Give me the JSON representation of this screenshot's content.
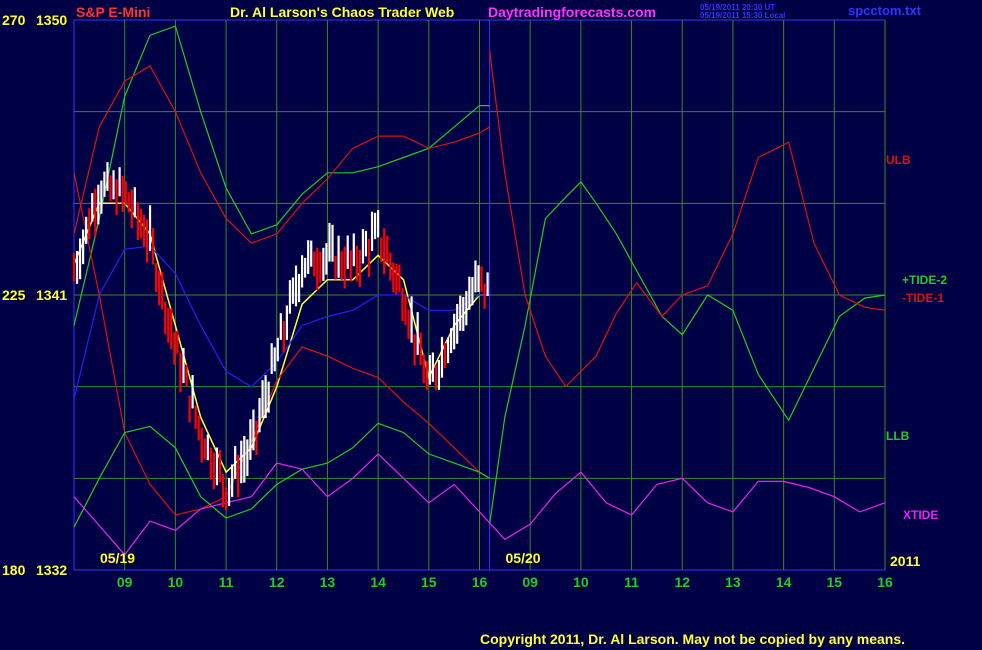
{
  "header": {
    "symbol": "S&P E-Mini",
    "title": "Dr. Al Larson's Chaos Trader Web",
    "site": "Daytradingforecasts.com",
    "timestamp_ut": "05/19/2011 20:30 UT",
    "timestamp_local": "05/19/2011 15:30 Local",
    "file": "spcctom.txt"
  },
  "footer": {
    "copyright": "Copyright 2011, Dr. Al Larson. May not be copied by any means."
  },
  "colors": {
    "background": "#000044",
    "grid": "#2e8b2e",
    "divider": "#3333ff",
    "green_line": "#22cc22",
    "red_line": "#dd1111",
    "blue_line": "#2222ee",
    "magenta_line": "#ee22ee",
    "yellow_line": "#ffff33",
    "white_bar": "#ffffff",
    "red_bar": "#ff0000"
  },
  "chart_data": {
    "type": "line",
    "y_axis_left": [
      {
        "outer": "270",
        "inner": "1350",
        "value": 1350
      },
      {
        "outer": "225",
        "inner": "1341",
        "value": 1341
      },
      {
        "outer": "180",
        "inner": "1332",
        "value": 1332
      }
    ],
    "ylim": [
      1332,
      1350
    ],
    "x_ticks": [
      "09",
      "10",
      "11",
      "12",
      "13",
      "14",
      "15",
      "16",
      "09",
      "10",
      "11",
      "12",
      "13",
      "14",
      "15",
      "16"
    ],
    "date_labels": [
      {
        "text": "05/19",
        "index": 0
      },
      {
        "text": "05/20",
        "index": 8
      }
    ],
    "year_label": "2011",
    "series_labels": [
      {
        "text": "ULB",
        "color": "#dd1111"
      },
      {
        "text": "+TIDE-2",
        "color": "#22cc22"
      },
      {
        "text": "-TIDE-1",
        "color": "#dd1111"
      },
      {
        "text": "LLB",
        "color": "#22cc22"
      },
      {
        "text": "XTIDE",
        "color": "#ee22ee"
      }
    ],
    "hours_x": [
      8.0,
      8.5,
      9.0,
      9.5,
      10.0,
      10.5,
      11.0,
      11.5,
      12.0,
      12.5,
      13.0,
      13.5,
      14.0,
      14.5,
      15.0,
      15.5,
      16.0,
      16.2
    ],
    "price_series": [
      {
        "name": "price-bars",
        "values": [
          1341.8,
          1344.5,
          1344.3,
          1342.8,
          1339.3,
          1336.5,
          1334.7,
          1336.0,
          1339.0,
          1342.0,
          1342.3,
          1342.0,
          1343.0,
          1341.0,
          1338.0,
          1340.0,
          1341.5,
          1341.0
        ]
      },
      {
        "name": "price-average",
        "values": [
          1342.0,
          1344.0,
          1344.0,
          1343.0,
          1340.0,
          1337.0,
          1335.2,
          1336.0,
          1338.0,
          1340.7,
          1341.5,
          1341.5,
          1342.3,
          1341.5,
          1338.3,
          1340.0,
          1341.0,
          1341.0
        ]
      },
      {
        "name": "blue-line",
        "values": [
          1337.6,
          1341.0,
          1342.5,
          1342.6,
          1341.7,
          1340.0,
          1338.5,
          1338.0,
          1338.8,
          1340.0,
          1340.3,
          1340.5,
          1341.0,
          1341.0,
          1340.5,
          1340.5,
          1341.0,
          1341.0
        ]
      },
      {
        "name": "green-upper",
        "values": [
          1340.0,
          1343.5,
          1347.5,
          1349.5,
          1349.8,
          1347.0,
          1344.5,
          1343.0,
          1343.3,
          1344.3,
          1345.0,
          1345.0,
          1345.2,
          1345.5,
          1345.8,
          1346.5,
          1347.2,
          1347.2
        ]
      },
      {
        "name": "red-upper",
        "values": [
          1343.0,
          1346.5,
          1348.0,
          1348.5,
          1347.0,
          1345.0,
          1343.5,
          1342.7,
          1343.0,
          1344.0,
          1344.8,
          1345.8,
          1346.2,
          1346.2,
          1345.8,
          1346.0,
          1346.3,
          1346.5
        ]
      },
      {
        "name": "red-lower",
        "values": [
          1345.0,
          1341.0,
          1336.5,
          1334.8,
          1333.8,
          1334.0,
          1334.4,
          1336.2,
          1338.2,
          1339.3,
          1339.0,
          1338.6,
          1338.3,
          1337.5,
          1336.8,
          1336.0,
          1335.2,
          1335.0
        ]
      },
      {
        "name": "green-lower",
        "values": [
          1333.4,
          1335.0,
          1336.5,
          1336.7,
          1336.0,
          1334.4,
          1333.7,
          1334.0,
          1334.8,
          1335.3,
          1335.5,
          1336.0,
          1336.8,
          1336.5,
          1335.8,
          1335.5,
          1335.2,
          1335.0
        ]
      }
    ],
    "forecast_series": [
      {
        "name": "green-forecast",
        "x": [
          16.2,
          16.5,
          16.9,
          17.3,
          17.7,
          18.0,
          18.3,
          18.7,
          19.1,
          19.6,
          20.0,
          20.5,
          21.0,
          21.5,
          22.1,
          22.6,
          23.1,
          23.6,
          24.0
        ],
        "values": [
          1333.5,
          1337.0,
          1340.0,
          1343.5,
          1344.2,
          1344.7,
          1344.0,
          1343.0,
          1341.8,
          1340.3,
          1339.7,
          1341.0,
          1340.5,
          1338.4,
          1336.9,
          1338.6,
          1340.3,
          1340.9,
          1341.0
        ]
      },
      {
        "name": "red-forecast",
        "x": [
          16.2,
          16.5,
          16.9,
          17.3,
          17.7,
          18.0,
          18.3,
          18.7,
          19.1,
          19.6,
          20.0,
          20.5,
          21.0,
          21.5,
          22.1,
          22.6,
          23.1,
          23.6,
          24.0
        ],
        "values": [
          1349.0,
          1345.0,
          1341.0,
          1339.0,
          1338.0,
          1338.5,
          1339.0,
          1340.4,
          1341.4,
          1340.3,
          1341.0,
          1341.3,
          1343.0,
          1345.5,
          1346.0,
          1342.7,
          1341.0,
          1340.6,
          1340.5
        ]
      }
    ],
    "xtide_x": [
      8.0,
      9.0,
      9.5,
      10.0,
      10.5,
      11.0,
      11.5,
      12.0,
      12.5,
      13.0,
      13.5,
      14.0,
      14.5,
      15.0,
      15.5,
      16.0,
      16.5,
      17.0,
      17.5,
      18.0,
      18.5,
      19.0,
      19.5,
      20.0,
      20.5,
      21.0,
      21.5,
      22.0,
      22.5,
      23.0,
      23.5,
      24.0
    ],
    "xtide_values": [
      1334.4,
      1332.5,
      1333.6,
      1333.3,
      1334.0,
      1334.2,
      1334.4,
      1335.5,
      1335.3,
      1334.4,
      1335.0,
      1335.8,
      1335.0,
      1334.2,
      1334.8,
      1333.9,
      1333.0,
      1333.5,
      1334.5,
      1335.2,
      1334.2,
      1333.8,
      1334.8,
      1335.0,
      1334.2,
      1333.9,
      1334.9,
      1334.9,
      1334.7,
      1334.4,
      1333.9,
      1334.2
    ]
  }
}
